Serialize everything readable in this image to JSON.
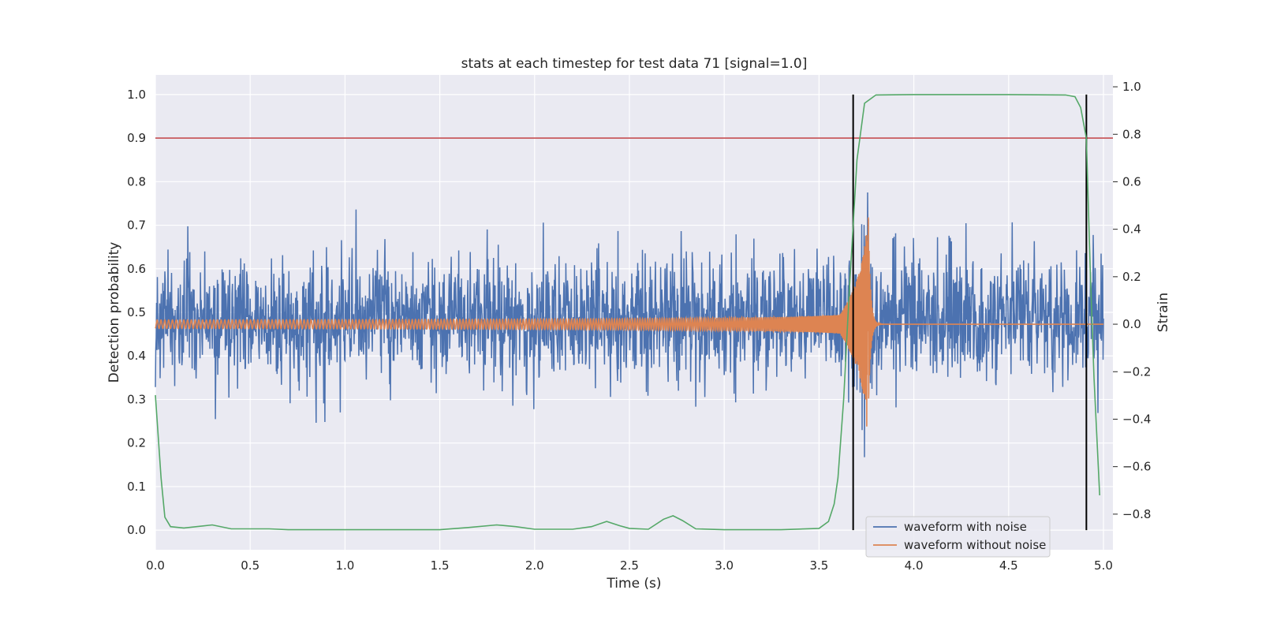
{
  "chart_data": {
    "type": "line",
    "title": "stats at each timestep for test data 71 [signal=1.0]",
    "xlabel": "Time (s)",
    "ylabel_left": "Detection probability",
    "ylabel_right": "Strain",
    "xlim": [
      0.0,
      5.05
    ],
    "ylim_left": [
      -0.045,
      1.045
    ],
    "ylim_right": [
      -0.95,
      1.05
    ],
    "x_ticks": [
      "0.0",
      "0.5",
      "1.0",
      "1.5",
      "2.0",
      "2.5",
      "3.0",
      "3.5",
      "4.0",
      "4.5",
      "5.0"
    ],
    "y_left_ticks": [
      "0.0",
      "0.1",
      "0.2",
      "0.3",
      "0.4",
      "0.5",
      "0.6",
      "0.7",
      "0.8",
      "0.9",
      "1.0"
    ],
    "y_right_ticks": [
      "−0.8",
      "−0.6",
      "−0.4",
      "−0.2",
      "0.0",
      "0.2",
      "0.4",
      "0.6",
      "0.8",
      "1.0"
    ],
    "grid": true,
    "threshold": {
      "value": 0.9,
      "color": "#c44e52"
    },
    "vertical_markers": [
      {
        "x": 3.68,
        "ymin": 0.0,
        "ymax": 1.0
      },
      {
        "x": 4.91,
        "ymin": 0.0,
        "ymax": 1.0
      }
    ],
    "probability_series": {
      "color": "#55a868",
      "x": [
        0.0,
        0.03,
        0.05,
        0.08,
        0.15,
        0.3,
        0.4,
        0.6,
        0.7,
        1.0,
        1.5,
        1.65,
        1.8,
        1.9,
        2.0,
        2.2,
        2.3,
        2.38,
        2.45,
        2.5,
        2.6,
        2.68,
        2.73,
        2.78,
        2.85,
        3.0,
        3.3,
        3.5,
        3.55,
        3.58,
        3.6,
        3.63,
        3.66,
        3.7,
        3.74,
        3.8,
        4.0,
        4.5,
        4.8,
        4.85,
        4.88,
        4.91,
        4.93,
        4.95,
        4.98
      ],
      "y": [
        0.31,
        0.12,
        0.03,
        0.008,
        0.005,
        0.012,
        0.003,
        0.003,
        0.001,
        0.001,
        0.001,
        0.006,
        0.012,
        0.008,
        0.002,
        0.002,
        0.008,
        0.02,
        0.01,
        0.004,
        0.002,
        0.025,
        0.033,
        0.022,
        0.003,
        0.001,
        0.001,
        0.004,
        0.02,
        0.06,
        0.12,
        0.3,
        0.55,
        0.85,
        0.98,
        0.999,
        1.0,
        1.0,
        0.999,
        0.995,
        0.97,
        0.9,
        0.6,
        0.35,
        0.08
      ]
    },
    "series": [
      {
        "name": "waveform with noise",
        "color": "#4c72b0",
        "axis": "right",
        "sigma": 0.13,
        "mean": 0.02,
        "range": [
          0.0,
          5.0
        ]
      },
      {
        "name": "waveform without noise",
        "color": "#dd8452",
        "axis": "right",
        "range": [
          0.0,
          5.0
        ],
        "peak_time": 3.76,
        "peak_strain": [
          -0.42,
          0.5
        ]
      }
    ],
    "legend_position": "lower right"
  }
}
